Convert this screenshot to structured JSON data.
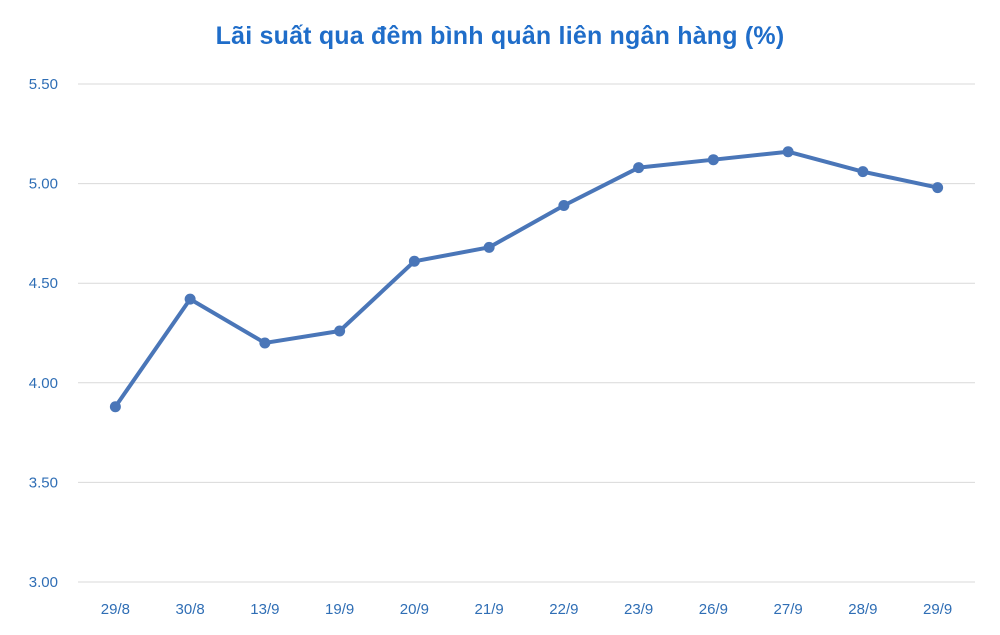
{
  "chart_data": {
    "type": "line",
    "title": "Lãi suất qua đêm bình quân liên ngân hàng (%)",
    "xlabel": "",
    "ylabel": "",
    "categories": [
      "29/8",
      "30/8",
      "13/9",
      "19/9",
      "20/9",
      "21/9",
      "22/9",
      "23/9",
      "26/9",
      "27/9",
      "28/9",
      "29/9"
    ],
    "series": [
      {
        "values": [
          3.88,
          4.42,
          4.2,
          4.26,
          4.61,
          4.68,
          4.89,
          5.08,
          5.12,
          5.16,
          5.06,
          4.98
        ]
      }
    ],
    "ylim": [
      3.0,
      5.5
    ],
    "yticks": [
      "3.00",
      "3.50",
      "4.00",
      "4.50",
      "5.00",
      "5.50"
    ],
    "grid": true,
    "legend": "none",
    "colors": {
      "line": "#4a76b8",
      "title": "#1f6dc9",
      "tick_labels": "#2f6eb5",
      "grid": "#d9d9d9"
    }
  }
}
